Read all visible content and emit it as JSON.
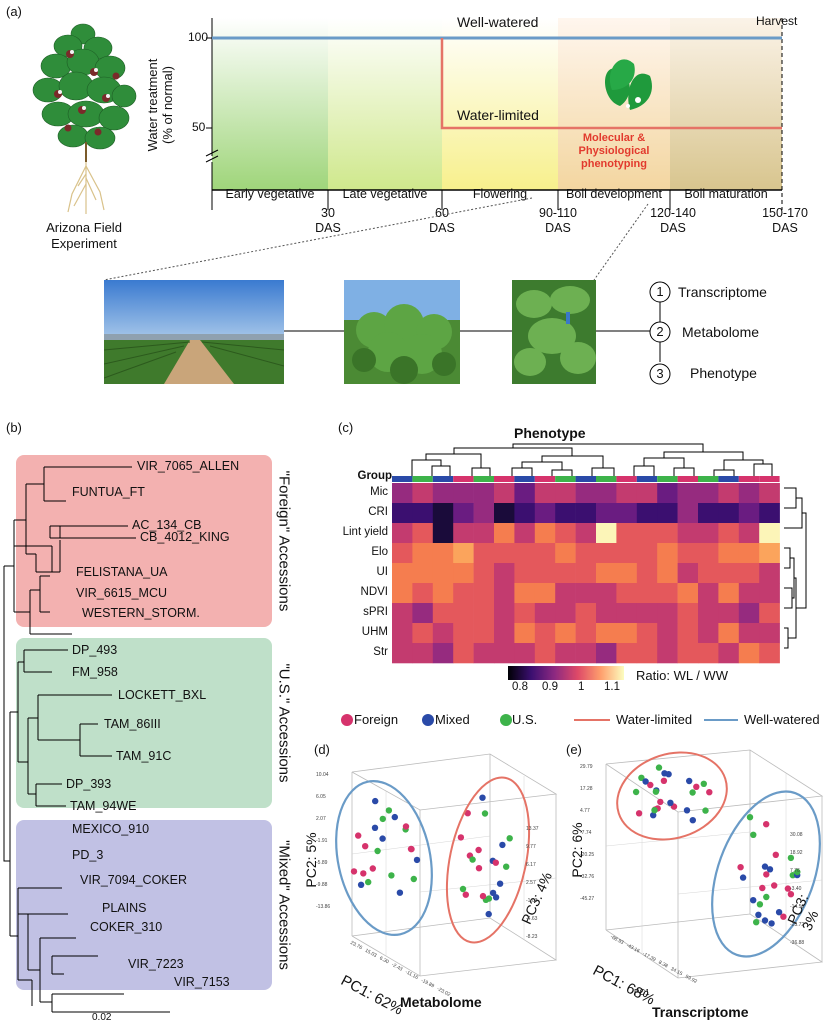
{
  "panel_a": {
    "label": "(a)",
    "field_caption_1": "Arizona Field",
    "field_caption_2": "Experiment",
    "y_title_1": "Water treatment",
    "y_title_2": "(% of normal)",
    "tick_100": "100",
    "tick_50": "50",
    "well_watered": "Well-watered",
    "water_limited": "Water-limited",
    "harvest": "Harvest",
    "pheno_1": "Molecular &",
    "pheno_2": "Physiological",
    "pheno_3": "phenotyping",
    "stages": [
      "Early vegetative",
      "Late vegetative",
      "Flowering",
      "Boll development",
      "Boll maturation"
    ],
    "das": [
      {
        "num": "30",
        "unit": "DAS"
      },
      {
        "num": "60",
        "unit": "DAS"
      },
      {
        "num": "90-110",
        "unit": "DAS"
      },
      {
        "num": "120-140",
        "unit": "DAS"
      },
      {
        "num": "150-170",
        "unit": "DAS"
      }
    ],
    "omics": [
      {
        "num": "1",
        "label": "Transcriptome"
      },
      {
        "num": "2",
        "label": "Metabolome"
      },
      {
        "num": "3",
        "label": "Phenotype"
      }
    ]
  },
  "panel_b": {
    "label": "(b)",
    "foreign_title": "\"Foreign\" Accessions",
    "us_title": "\"U.S.\" Accessions",
    "mixed_title": "\"Mixed\" Accessions",
    "foreign": [
      "VIR_7065_ALLEN",
      "FUNTUA_FT",
      "AC_134_CB",
      "CB_4012_KING",
      "FELISTANA_UA",
      "VIR_6615_MCU",
      "WESTERN_STORM."
    ],
    "us": [
      "DP_493",
      "FM_958",
      "LOCKETT_BXL",
      "TAM_86III",
      "TAM_91C",
      "DP_393",
      "TAM_94WE"
    ],
    "mixed": [
      "MEXICO_910",
      "PD_3",
      "VIR_7094_COKER",
      "PLAINS",
      "COKER_310",
      "VIR_7223",
      "VIR_7153"
    ],
    "scale": "0.02"
  },
  "panel_c": {
    "label": "(c)",
    "title": "Phenotype",
    "group_label": "Group",
    "rows": [
      "Mic",
      "CRI",
      "Lint yield",
      "Elo",
      "UI",
      "NDVI",
      "sPRI",
      "UHM",
      "Str"
    ],
    "colorbar_ticks": [
      "0.8",
      "0.9",
      "1",
      "1.1"
    ],
    "colorbar_title": "Ratio: WL / WW"
  },
  "legend": {
    "foreign": "Foreign",
    "mixed": "Mixed",
    "us": "U.S.",
    "water_limited": "Water-limited",
    "well_watered": "Well-watered"
  },
  "colors": {
    "foreign": "#d6336c",
    "mixed": "#2a4aa8",
    "us": "#3db34a",
    "water_limited": "#e57366",
    "well_watered": "#6a9bc7"
  },
  "panel_d": {
    "label": "(d)",
    "title": "Metabolome",
    "pc1": "PC1: 62%",
    "pc2": "PC2: 5%",
    "pc3": "PC3: 4%",
    "left_ticks": [
      "10.04",
      "6.05",
      "2.07",
      "-1.91",
      "-5.89",
      "-9.88",
      "-13.86"
    ],
    "front_ticks": [
      "23.76",
      "15.03",
      "6.30",
      "-2.43",
      "-11.16",
      "-19.89",
      "-23.02"
    ],
    "right_ticks": [
      "13.37",
      "9.77",
      "6.17",
      "2.57",
      "-1.03",
      "-4.63",
      "-8.23"
    ]
  },
  "panel_e": {
    "label": "(e)",
    "title": "Transcriptome",
    "pc1": "PC1: 68%",
    "pc1_small": "PC1",
    "pc2": "PC2: 6%",
    "pc3": "PC3: 3%",
    "left_ticks": [
      "29.79",
      "17.28",
      "4.77",
      "-7.74",
      "-20.25",
      "-32.76",
      "-45.27"
    ],
    "front_ticks": [
      "-68.93",
      "-43.16",
      "-17.39",
      "8.38",
      "34.15",
      "59.92"
    ],
    "right_ticks": [
      "30.08",
      "18.92",
      "7.76",
      "-3.40",
      "-14.56",
      "-25.72",
      "-36.88"
    ]
  }
}
